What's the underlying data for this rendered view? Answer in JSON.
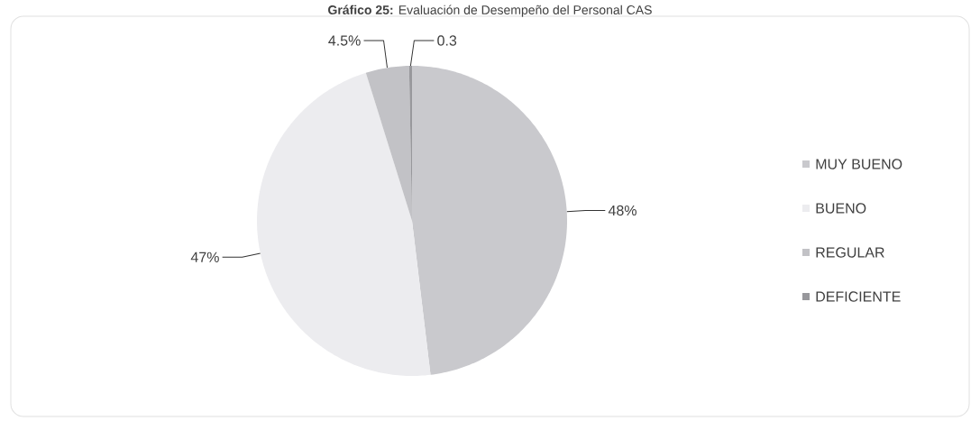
{
  "chart_data": {
    "type": "pie",
    "title": "**Gráfico 25:** Evaluación de Desempeño del Personal CAS",
    "categories": [
      "MUY BUENO",
      "BUENO",
      "REGULAR",
      "DEFICIENTE"
    ],
    "values": [
      48,
      47,
      4.5,
      0.3
    ],
    "value_labels": [
      "48%",
      "47%",
      "4.5%",
      "0.3"
    ],
    "colors": [
      "#c9c9cd",
      "#ececef",
      "#c2c2c6",
      "#98989c"
    ],
    "legend": "right"
  }
}
